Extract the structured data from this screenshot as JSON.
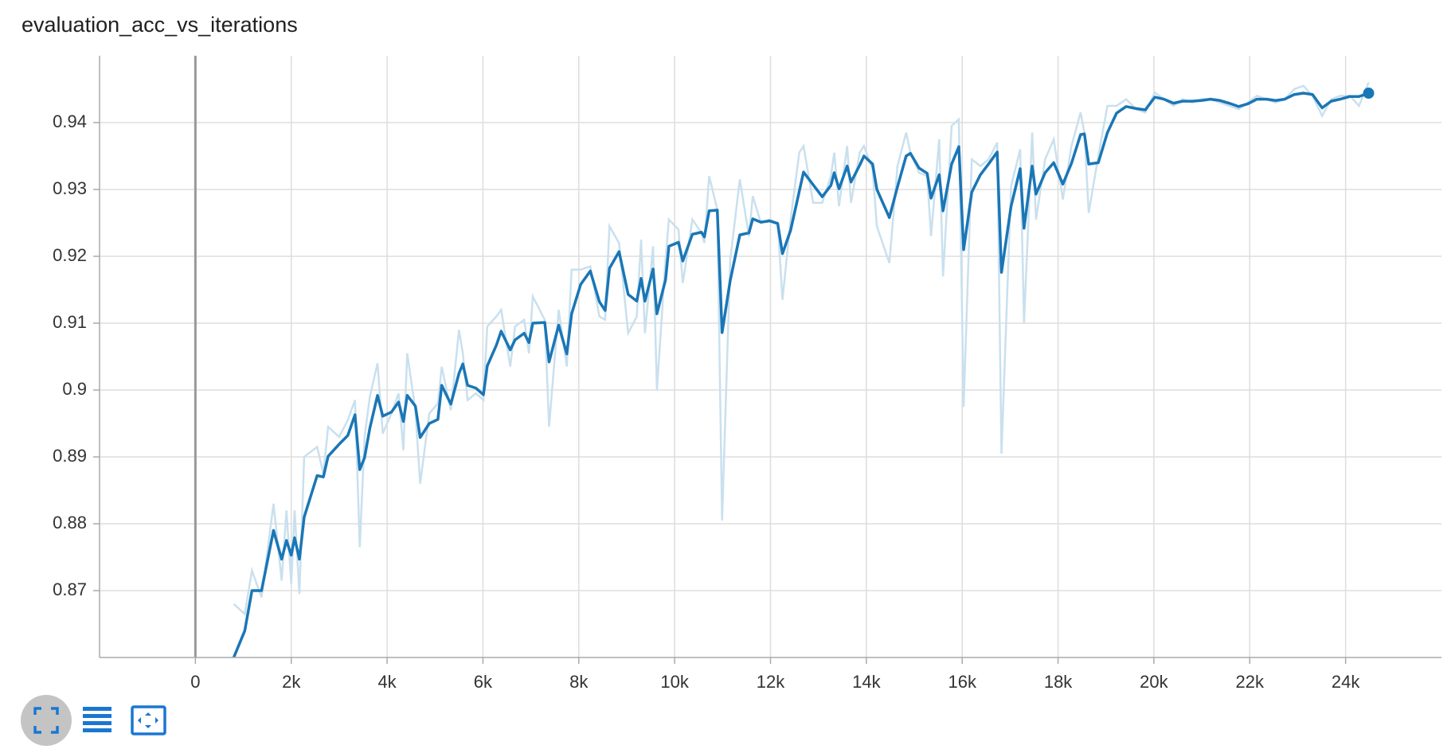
{
  "chart_data": {
    "type": "line",
    "title": "evaluation_acc_vs_iterations",
    "x": [
      800,
      1030,
      1180,
      1380,
      1630,
      1800,
      1900,
      2000,
      2070,
      2170,
      2270,
      2540,
      2670,
      2770,
      3000,
      3180,
      3330,
      3430,
      3530,
      3640,
      3800,
      3910,
      4090,
      4240,
      4340,
      4420,
      4590,
      4690,
      4880,
      5060,
      5140,
      5330,
      5500,
      5580,
      5680,
      5850,
      6010,
      6090,
      6280,
      6380,
      6570,
      6670,
      6860,
      6960,
      7040,
      7290,
      7380,
      7580,
      7750,
      7850,
      8040,
      8240,
      8430,
      8550,
      8640,
      8840,
      9030,
      9210,
      9300,
      9380,
      9550,
      9630,
      9810,
      9880,
      10080,
      10170,
      10370,
      10560,
      10620,
      10720,
      10890,
      10990,
      11160,
      11360,
      11550,
      11630,
      11800,
      11980,
      12150,
      12250,
      12420,
      12600,
      12690,
      12890,
      13080,
      13260,
      13330,
      13430,
      13600,
      13680,
      13860,
      13950,
      14130,
      14220,
      14480,
      14650,
      14830,
      14920,
      15100,
      15270,
      15350,
      15520,
      15600,
      15780,
      15930,
      16030,
      16200,
      16380,
      16550,
      16730,
      16820,
      17020,
      17210,
      17290,
      17460,
      17540,
      17730,
      17910,
      18100,
      18280,
      18470,
      18550,
      18640,
      18840,
      19030,
      19220,
      19420,
      19630,
      19820,
      20020,
      20210,
      20410,
      20600,
      20800,
      20990,
      21180,
      21380,
      21570,
      21770,
      21960,
      22150,
      22350,
      22540,
      22730,
      22930,
      23120,
      23310,
      23510,
      23700,
      23890,
      24090,
      24280,
      24480
    ],
    "series": [
      {
        "color": "#c9e0ee",
        "values": [
          0.868,
          0.8665,
          0.873,
          0.869,
          0.883,
          0.8715,
          0.882,
          0.871,
          0.882,
          0.8695,
          0.89,
          0.8915,
          0.8875,
          0.8945,
          0.893,
          0.8955,
          0.8985,
          0.8765,
          0.893,
          0.899,
          0.904,
          0.8935,
          0.8965,
          0.8995,
          0.891,
          0.9055,
          0.897,
          0.886,
          0.8965,
          0.898,
          0.9035,
          0.897,
          0.909,
          0.9055,
          0.8985,
          0.8995,
          0.8985,
          0.9095,
          0.911,
          0.912,
          0.9035,
          0.9095,
          0.9105,
          0.9055,
          0.914,
          0.9105,
          0.8945,
          0.912,
          0.9035,
          0.918,
          0.918,
          0.9185,
          0.911,
          0.9105,
          0.9245,
          0.922,
          0.9085,
          0.911,
          0.9225,
          0.9085,
          0.9215,
          0.9,
          0.9195,
          0.9255,
          0.924,
          0.916,
          0.9255,
          0.9235,
          0.922,
          0.932,
          0.927,
          0.8805,
          0.9195,
          0.9315,
          0.923,
          0.929,
          0.925,
          0.9255,
          0.925,
          0.9135,
          0.9255,
          0.9355,
          0.9365,
          0.928,
          0.928,
          0.932,
          0.9355,
          0.9275,
          0.9365,
          0.928,
          0.9355,
          0.9365,
          0.933,
          0.9245,
          0.919,
          0.9335,
          0.9385,
          0.9355,
          0.9325,
          0.932,
          0.923,
          0.9375,
          0.917,
          0.9395,
          0.9405,
          0.8975,
          0.9345,
          0.9335,
          0.9345,
          0.937,
          0.8905,
          0.9305,
          0.936,
          0.91,
          0.9385,
          0.9255,
          0.9345,
          0.9375,
          0.9285,
          0.9365,
          0.9415,
          0.9385,
          0.9265,
          0.935,
          0.9425,
          0.9425,
          0.9435,
          0.942,
          0.9415,
          0.9445,
          0.9435,
          0.9425,
          0.9435,
          0.943,
          0.9435,
          0.9435,
          0.943,
          0.9425,
          0.942,
          0.943,
          0.944,
          0.9435,
          0.943,
          0.9435,
          0.945,
          0.9455,
          0.944,
          0.941,
          0.9435,
          0.944,
          0.944,
          0.9425,
          0.946
        ]
      },
      {
        "color": "#1a76b6",
        "values": [
          0.86,
          0.864,
          0.87,
          0.87,
          0.879,
          0.8747,
          0.8775,
          0.8753,
          0.8779,
          0.8747,
          0.881,
          0.8872,
          0.887,
          0.8901,
          0.8919,
          0.8932,
          0.8963,
          0.8881,
          0.8899,
          0.8943,
          0.8992,
          0.8961,
          0.8967,
          0.8982,
          0.8953,
          0.8992,
          0.8976,
          0.8929,
          0.895,
          0.8956,
          0.9007,
          0.8979,
          0.9025,
          0.9039,
          0.9007,
          0.9003,
          0.8993,
          0.9036,
          0.9067,
          0.9088,
          0.906,
          0.9075,
          0.9085,
          0.9071,
          0.91,
          0.9101,
          0.9042,
          0.9097,
          0.9054,
          0.9114,
          0.9158,
          0.9178,
          0.9132,
          0.9119,
          0.9182,
          0.9207,
          0.9143,
          0.9133,
          0.9167,
          0.9133,
          0.9181,
          0.9114,
          0.9165,
          0.9215,
          0.9221,
          0.9193,
          0.9233,
          0.9236,
          0.9229,
          0.9268,
          0.9269,
          0.9086,
          0.9164,
          0.9232,
          0.9235,
          0.9256,
          0.9251,
          0.9253,
          0.9249,
          0.9204,
          0.9239,
          0.9297,
          0.9326,
          0.9307,
          0.9289,
          0.9306,
          0.9325,
          0.9301,
          0.9335,
          0.9311,
          0.9336,
          0.935,
          0.9338,
          0.93,
          0.9258,
          0.9304,
          0.935,
          0.9354,
          0.9332,
          0.9324,
          0.9287,
          0.9322,
          0.9268,
          0.9338,
          0.9364,
          0.921,
          0.9296,
          0.9322,
          0.9338,
          0.9356,
          0.9176,
          0.9275,
          0.9331,
          0.9242,
          0.9335,
          0.9293,
          0.9325,
          0.934,
          0.9308,
          0.9339,
          0.9382,
          0.9383,
          0.9338,
          0.934,
          0.9385,
          0.9414,
          0.9424,
          0.9421,
          0.9419,
          0.9438,
          0.9435,
          0.9429,
          0.9432,
          0.9432,
          0.9433,
          0.9435,
          0.9433,
          0.9429,
          0.9424,
          0.9428,
          0.9435,
          0.9435,
          0.9433,
          0.9435,
          0.9442,
          0.9444,
          0.9442,
          0.9422,
          0.9432,
          0.9435,
          0.9439,
          0.9439,
          0.9444
        ]
      }
    ],
    "xlim": [
      -2000,
      26000
    ],
    "xticks": [
      0,
      {
        "value": 2000,
        "label": "2k"
      },
      {
        "value": 4000,
        "label": "4k"
      },
      {
        "value": 6000,
        "label": "6k"
      },
      {
        "value": 8000,
        "label": "8k"
      },
      {
        "value": 10000,
        "label": "10k"
      },
      {
        "value": 12000,
        "label": "12k"
      },
      {
        "value": 14000,
        "label": "14k"
      },
      {
        "value": 16000,
        "label": "16k"
      },
      {
        "value": 18000,
        "label": "18k"
      },
      {
        "value": 20000,
        "label": "20k"
      },
      {
        "value": 22000,
        "label": "22k"
      },
      {
        "value": 24000,
        "label": "24k"
      }
    ],
    "ylim": [
      0.86,
      0.95
    ],
    "yticks": [
      0.87,
      0.88,
      0.89,
      0.9,
      0.91,
      0.92,
      0.93,
      0.94
    ],
    "grid": true
  }
}
